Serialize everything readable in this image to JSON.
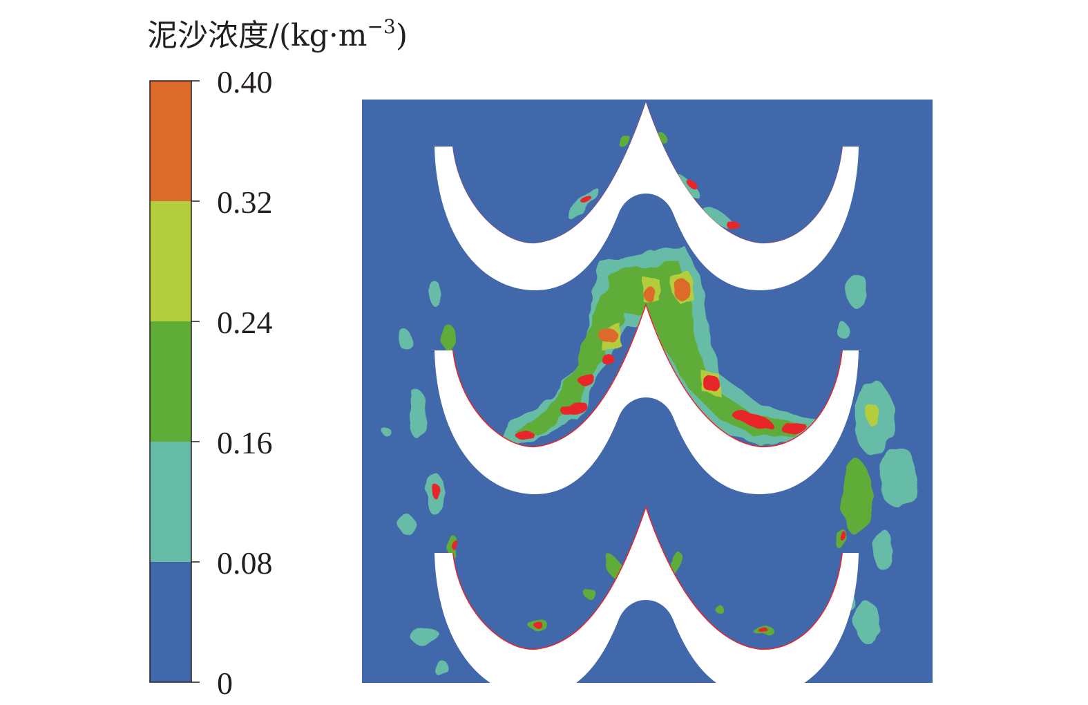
{
  "chart_data": {
    "type": "heatmap",
    "title": "",
    "legend": {
      "title_main": "泥沙浓度/(kg·m",
      "title_sup": "−3",
      "title_end": ")",
      "ticks": [
        "0",
        "0.08",
        "0.16",
        "0.24",
        "0.32",
        "0.40"
      ],
      "bands": [
        {
          "from": 0.0,
          "to": 0.08,
          "color": "#4168ab"
        },
        {
          "from": 0.08,
          "to": 0.16,
          "color": "#66bca7"
        },
        {
          "from": 0.16,
          "to": 0.24,
          "color": "#5fad37"
        },
        {
          "from": 0.24,
          "to": 0.32,
          "color": "#b3cd3c"
        },
        {
          "from": 0.32,
          "to": 0.4,
          "color": "#dc6a2b"
        }
      ],
      "range": [
        0,
        0.4
      ]
    },
    "field": {
      "background_value": 0.0,
      "peak_value": 0.4,
      "blades": 3,
      "peak_color": "#e8262a"
    }
  }
}
